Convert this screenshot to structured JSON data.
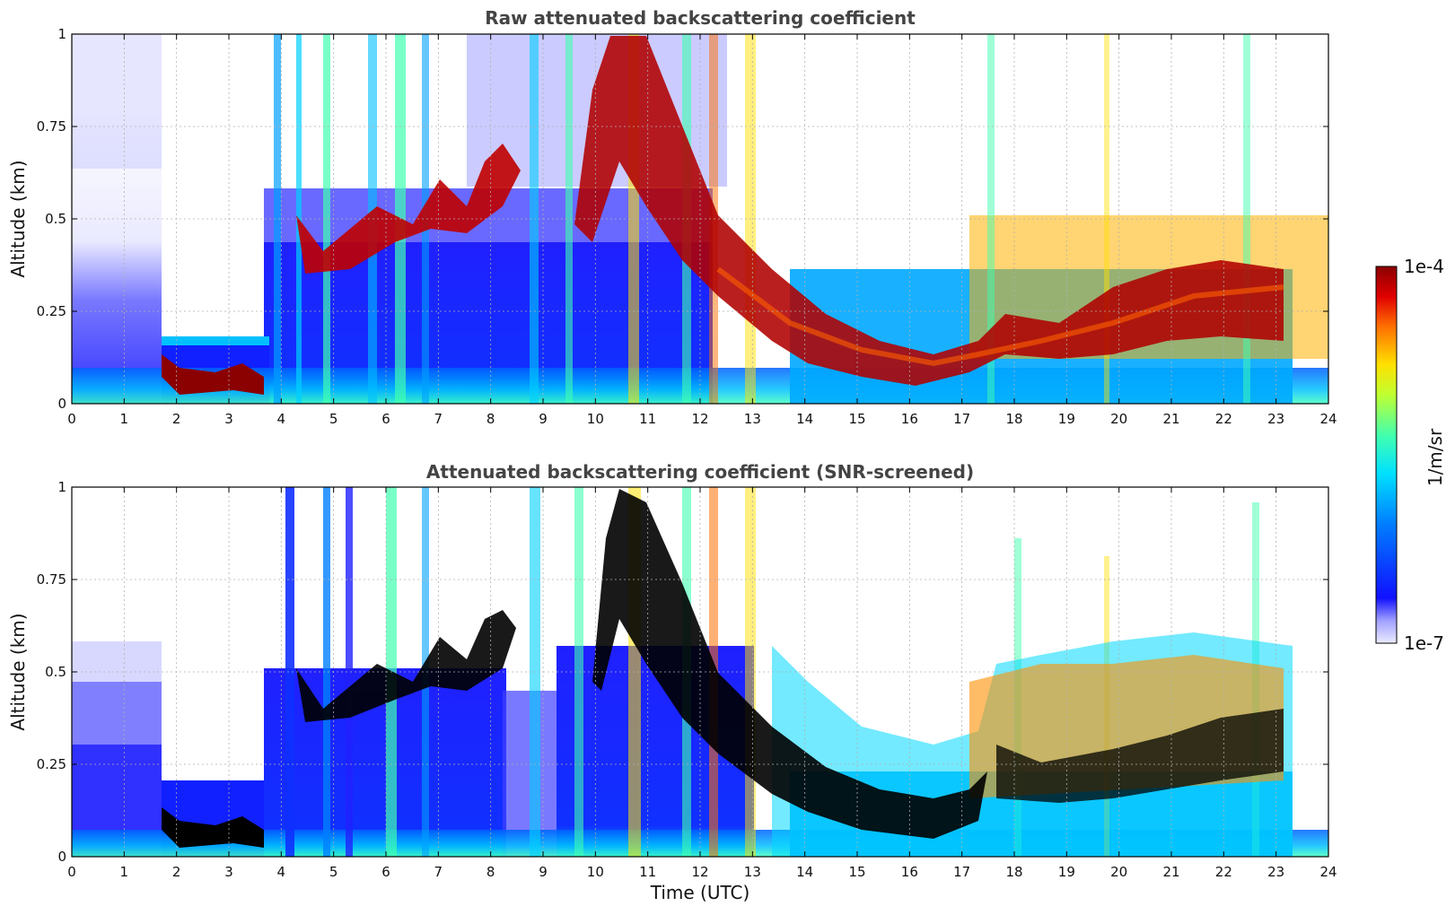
{
  "chart_data": [
    {
      "type": "heatmap",
      "title": "Raw attenuated backscattering coefficient",
      "xlabel": "",
      "ylabel": "Altitude (km)",
      "xlim": [
        0,
        24
      ],
      "ylim": [
        0,
        1
      ],
      "x_ticks": [
        "0",
        "1",
        "2",
        "3",
        "4",
        "5",
        "6",
        "7",
        "8",
        "9",
        "10",
        "11",
        "12",
        "13",
        "14",
        "15",
        "16",
        "17",
        "18",
        "19",
        "20",
        "21",
        "22",
        "23",
        "24"
      ],
      "y_ticks": [
        "0",
        "0.25",
        "0.5",
        "0.75",
        "1"
      ],
      "grid": true,
      "boundary_layer_top_km": [
        {
          "t": 1.8,
          "z": 0.1
        },
        {
          "t": 3.6,
          "z": 0.08
        },
        {
          "t": 4.5,
          "z": 0.4
        },
        {
          "t": 7.5,
          "z": 0.5
        },
        {
          "t": 8.5,
          "z": 0.65
        },
        {
          "t": 10.5,
          "z": 0.9
        },
        {
          "t": 12.5,
          "z": 0.45
        },
        {
          "t": 14.0,
          "z": 0.22
        },
        {
          "t": 16.0,
          "z": 0.08
        },
        {
          "t": 17.2,
          "z": 0.08
        },
        {
          "t": 18.5,
          "z": 0.2
        },
        {
          "t": 20.0,
          "z": 0.2
        },
        {
          "t": 22.0,
          "z": 0.28
        },
        {
          "t": 23.8,
          "z": 0.3
        }
      ]
    },
    {
      "type": "heatmap",
      "title": "Attenuated backscattering coefficient (SNR-screened)",
      "xlabel": "Time (UTC)",
      "ylabel": "Altitude (km)",
      "xlim": [
        0,
        24
      ],
      "ylim": [
        0,
        1
      ],
      "x_ticks": [
        "0",
        "1",
        "2",
        "3",
        "4",
        "5",
        "6",
        "7",
        "8",
        "9",
        "10",
        "11",
        "12",
        "13",
        "14",
        "15",
        "16",
        "17",
        "18",
        "19",
        "20",
        "21",
        "22",
        "23",
        "24"
      ],
      "y_ticks": [
        "0",
        "0.25",
        "0.5",
        "0.75",
        "1"
      ],
      "grid": true
    }
  ],
  "colorbar": {
    "label": "1/m/sr",
    "max_label": "1e-4",
    "min_label": "1e-7",
    "scale": "log",
    "colormap": "jet-like",
    "low_color": "#e8e8ff",
    "high_color": "#8b0000"
  }
}
